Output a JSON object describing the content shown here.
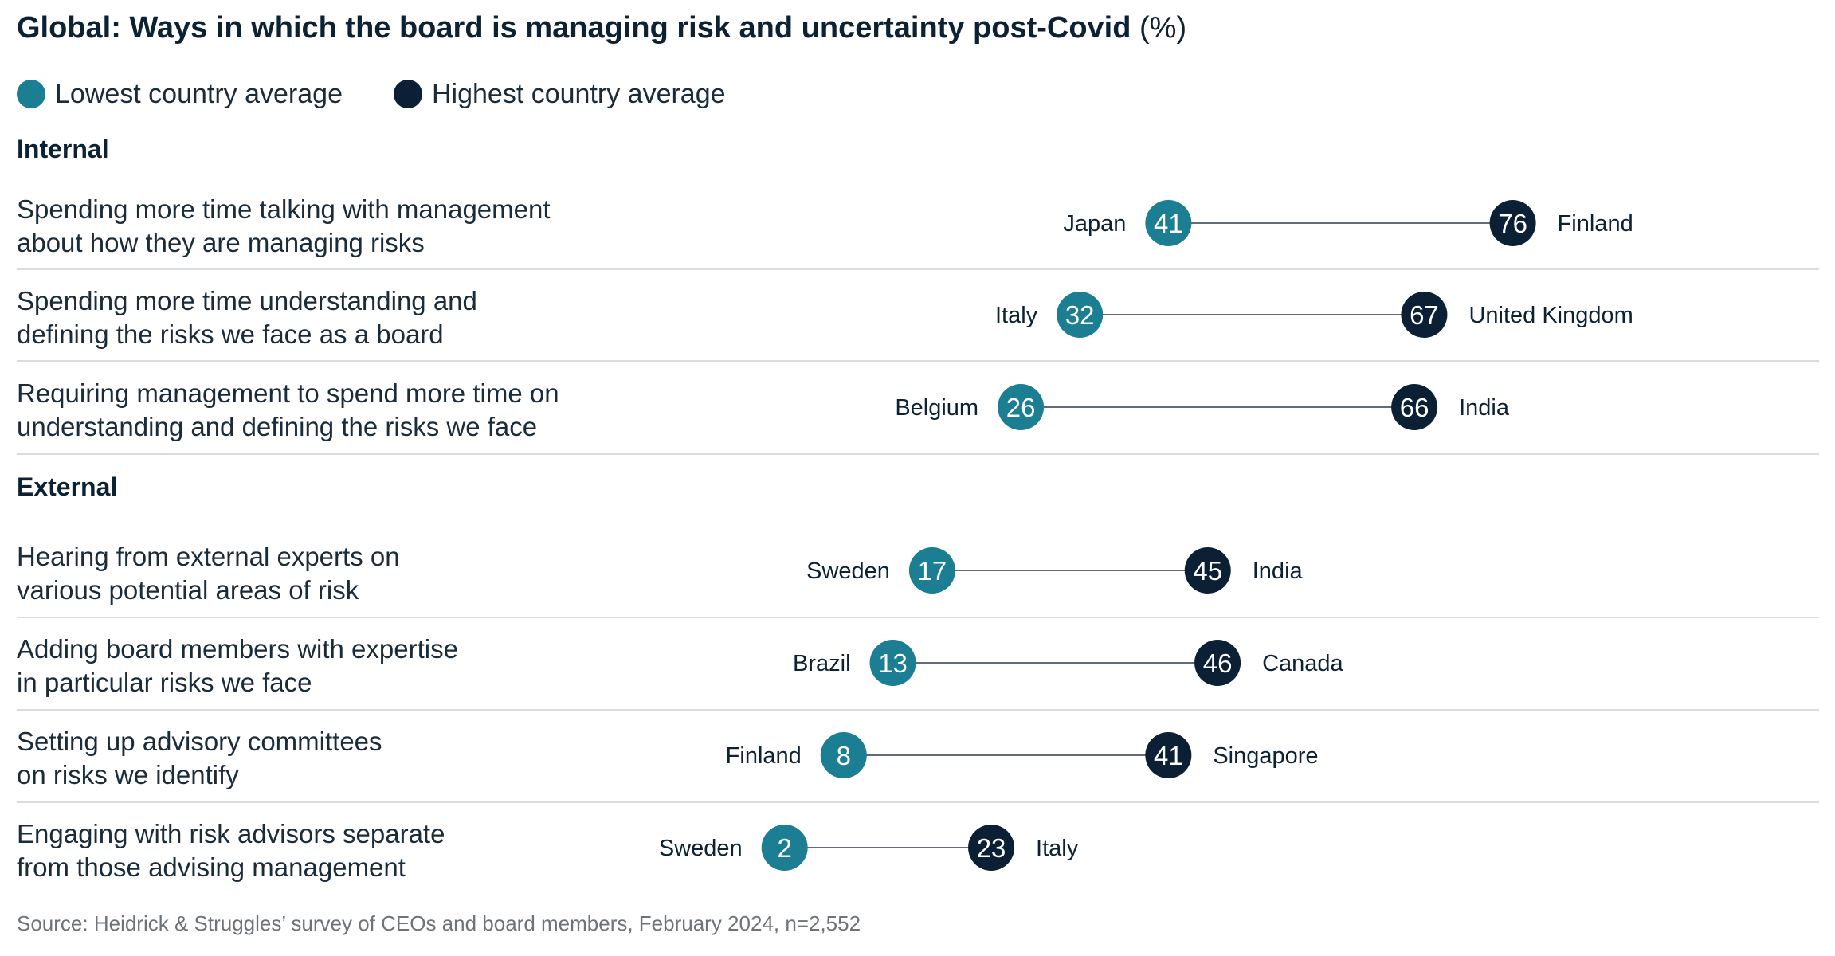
{
  "chart_data": {
    "type": "dot-range",
    "title": "Global: Ways in which the board is managing risk and uncertainty post-Covid",
    "title_unit": "(%)",
    "legend": [
      {
        "label": "Lowest country average",
        "color": "#1b7e93"
      },
      {
        "label": "Highest country average",
        "color": "#0b2034"
      }
    ],
    "groups": [
      {
        "name": "Internal",
        "items": [
          {
            "label": [
              "Spending more time talking with management",
              "about how they are managing risks"
            ],
            "low": 41,
            "low_country": "Japan",
            "high": 76,
            "high_country": "Finland"
          },
          {
            "label": [
              "Spending more time understanding and",
              "defining the risks we face as a board"
            ],
            "low": 32,
            "low_country": "Italy",
            "high": 67,
            "high_country": "United Kingdom"
          },
          {
            "label": [
              "Requiring management to spend more time on",
              "understanding and defining the risks we face"
            ],
            "low": 26,
            "low_country": "Belgium",
            "high": 66,
            "high_country": "India"
          }
        ]
      },
      {
        "name": "External",
        "items": [
          {
            "label": [
              "Hearing from external experts on",
              "various potential areas of risk"
            ],
            "low": 17,
            "low_country": "Sweden",
            "high": 45,
            "high_country": "India"
          },
          {
            "label": [
              "Adding board members with expertise",
              "in particular risks we face"
            ],
            "low": 13,
            "low_country": "Brazil",
            "high": 46,
            "high_country": "Canada"
          },
          {
            "label": [
              "Setting up advisory committees",
              "on risks we identify"
            ],
            "low": 8,
            "low_country": "Finland",
            "high": 41,
            "high_country": "Singapore"
          },
          {
            "label": [
              "Engaging with risk advisors separate",
              "from those advising management"
            ],
            "low": 2,
            "low_country": "Sweden",
            "high": 23,
            "high_country": "Italy"
          }
        ]
      }
    ],
    "source": "Source: Heidrick & Struggles’ survey of CEOs and board members, February 2024, n=2,552"
  }
}
